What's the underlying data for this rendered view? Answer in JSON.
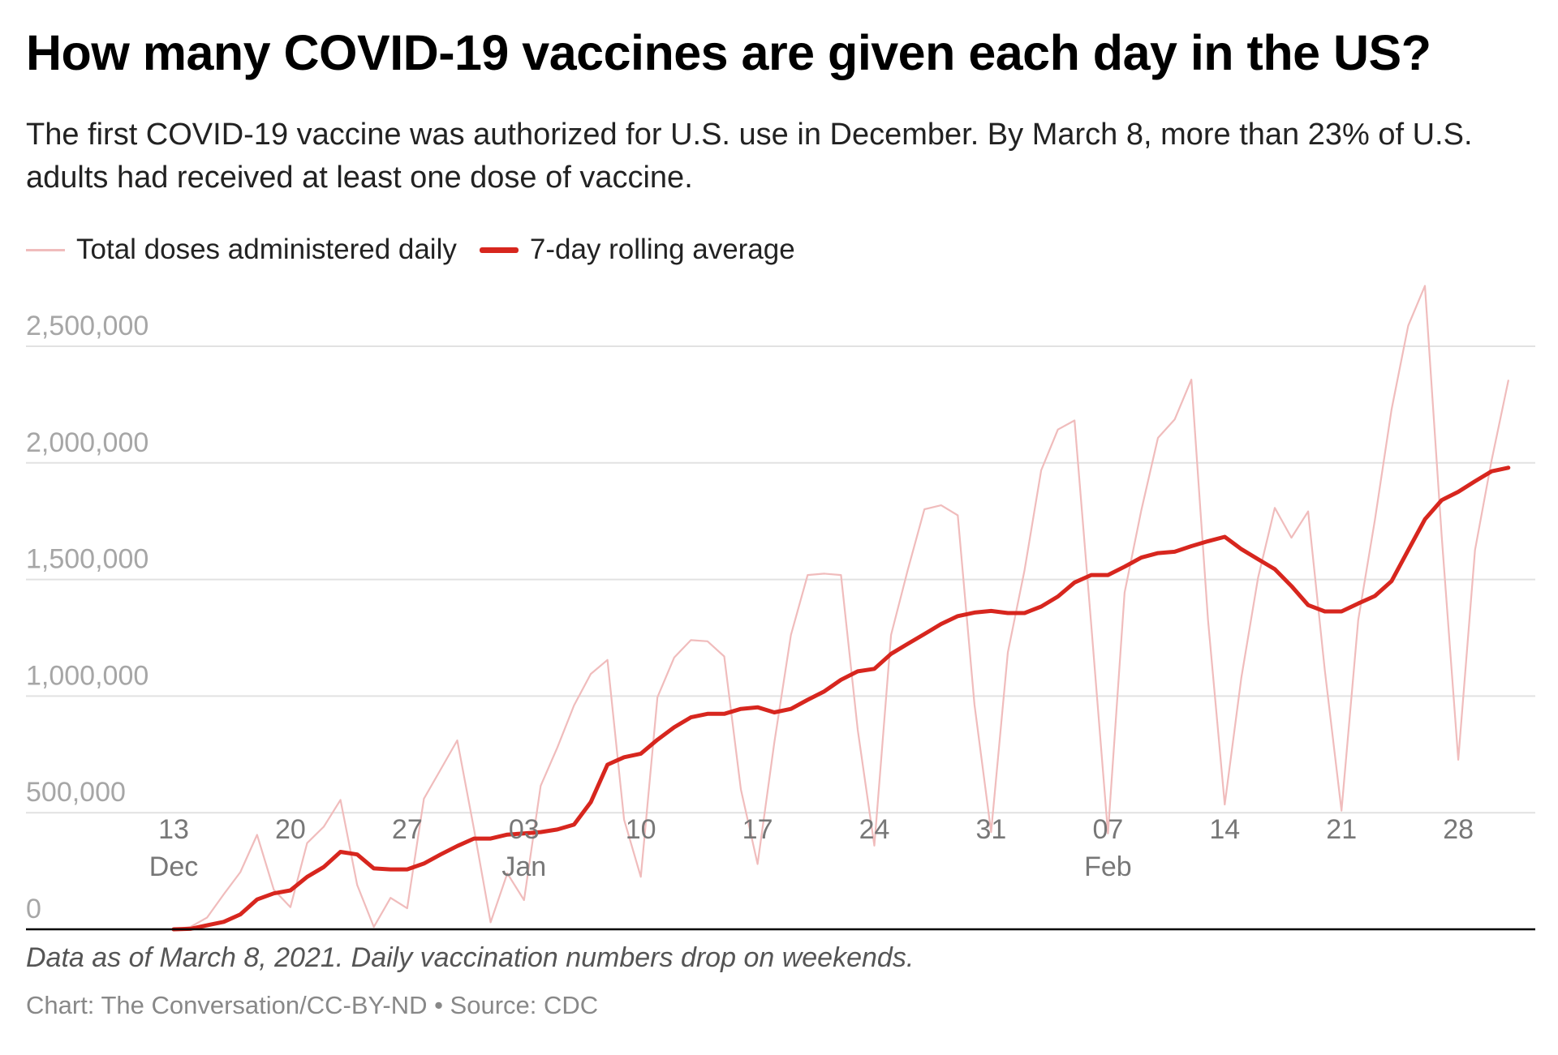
{
  "title": "How many COVID-19 vaccines are given each day in the US?",
  "subtitle": "The first COVID-19 vaccine was authorized for U.S. use in December. By March 8, more than 23% of U.S. adults had received at least one dose of vaccine.",
  "note": "Data as of March 8, 2021. Daily vaccination numbers drop on weekends.",
  "source": "Chart: The Conversation/CC-BY-ND • Source: CDC",
  "colors": {
    "daily": "#f0bcbc",
    "average": "#d7261e",
    "grid": "#e2e2e2",
    "axis": "#000000"
  },
  "chart_data": {
    "type": "line",
    "title": "How many COVID-19 vaccines are given each day in the US?",
    "xlabel": "",
    "ylabel": "",
    "ylim": [
      0,
      2500000
    ],
    "grid": true,
    "legend_placement": "top-left",
    "yticks": [
      {
        "value": 0,
        "label": "0"
      },
      {
        "value": 500000,
        "label": "500,000"
      },
      {
        "value": 1000000,
        "label": "1,000,000"
      },
      {
        "value": 1500000,
        "label": "1,500,000"
      },
      {
        "value": 2000000,
        "label": "2,000,000"
      },
      {
        "value": 2500000,
        "label": "2,500,000"
      }
    ],
    "xticks": [
      {
        "date": "2020-12-13",
        "label": "13",
        "month": "Dec"
      },
      {
        "date": "2020-12-20",
        "label": "20",
        "month": ""
      },
      {
        "date": "2020-12-27",
        "label": "27",
        "month": ""
      },
      {
        "date": "2021-01-03",
        "label": "03",
        "month": "Jan"
      },
      {
        "date": "2021-01-10",
        "label": "10",
        "month": ""
      },
      {
        "date": "2021-01-17",
        "label": "17",
        "month": ""
      },
      {
        "date": "2021-01-24",
        "label": "24",
        "month": ""
      },
      {
        "date": "2021-01-31",
        "label": "31",
        "month": ""
      },
      {
        "date": "2021-02-07",
        "label": "07",
        "month": "Feb"
      },
      {
        "date": "2021-02-14",
        "label": "14",
        "month": ""
      },
      {
        "date": "2021-02-21",
        "label": "21",
        "month": ""
      },
      {
        "date": "2021-02-28",
        "label": "28",
        "month": ""
      }
    ],
    "x": [
      "2020-12-13",
      "2020-12-14",
      "2020-12-15",
      "2020-12-16",
      "2020-12-17",
      "2020-12-18",
      "2020-12-19",
      "2020-12-20",
      "2020-12-21",
      "2020-12-22",
      "2020-12-23",
      "2020-12-24",
      "2020-12-25",
      "2020-12-26",
      "2020-12-27",
      "2020-12-28",
      "2020-12-29",
      "2020-12-30",
      "2020-12-31",
      "2021-01-01",
      "2021-01-02",
      "2021-01-03",
      "2021-01-04",
      "2021-01-05",
      "2021-01-06",
      "2021-01-07",
      "2021-01-08",
      "2021-01-09",
      "2021-01-10",
      "2021-01-11",
      "2021-01-12",
      "2021-01-13",
      "2021-01-14",
      "2021-01-15",
      "2021-01-16",
      "2021-01-17",
      "2021-01-18",
      "2021-01-19",
      "2021-01-20",
      "2021-01-21",
      "2021-01-22",
      "2021-01-23",
      "2021-01-24",
      "2021-01-25",
      "2021-01-26",
      "2021-01-27",
      "2021-01-28",
      "2021-01-29",
      "2021-01-30",
      "2021-01-31",
      "2021-02-01",
      "2021-02-02",
      "2021-02-03",
      "2021-02-04",
      "2021-02-05",
      "2021-02-06",
      "2021-02-07",
      "2021-02-08",
      "2021-02-09",
      "2021-02-10",
      "2021-02-11",
      "2021-02-12",
      "2021-02-13",
      "2021-02-14",
      "2021-02-15",
      "2021-02-16",
      "2021-02-17",
      "2021-02-18",
      "2021-02-19",
      "2021-02-20",
      "2021-02-21",
      "2021-02-22",
      "2021-02-23",
      "2021-02-24",
      "2021-02-25",
      "2021-02-26",
      "2021-02-27",
      "2021-02-28",
      "2021-03-01",
      "2021-03-02",
      "2021-03-03"
    ],
    "series": [
      {
        "name": "Total doses administered daily",
        "color": "#f0bcbc",
        "values": [
          0,
          10000,
          50000,
          150000,
          245000,
          405000,
          170000,
          95000,
          370000,
          440000,
          555000,
          190000,
          10000,
          135000,
          90000,
          560000,
          685000,
          810000,
          430000,
          30000,
          240000,
          125000,
          615000,
          780000,
          960000,
          1095000,
          1155000,
          470000,
          225000,
          995000,
          1165000,
          1240000,
          1235000,
          1170000,
          600000,
          280000,
          800000,
          1262000,
          1519000,
          1525000,
          1519000,
          856000,
          359000,
          1262000,
          1540000,
          1801000,
          1818000,
          1775000,
          963000,
          417000,
          1187000,
          1540000,
          1968000,
          2143000,
          2182000,
          1305000,
          411000,
          1444000,
          1797000,
          2107000,
          2186000,
          2357000,
          1326000,
          535000,
          1080000,
          1508000,
          1807000,
          1679000,
          1792000,
          1112000,
          509000,
          1326000,
          1754000,
          2229000,
          2588000,
          2759000,
          1690000,
          727000,
          1626000,
          2011000,
          2353000
        ]
      },
      {
        "name": "7-day rolling average",
        "color": "#d7261e",
        "values": [
          0,
          2000,
          17000,
          32000,
          64000,
          128000,
          154000,
          167000,
          225000,
          267000,
          332000,
          321000,
          261000,
          257000,
          257000,
          282000,
          321000,
          357000,
          389000,
          389000,
          406000,
          411000,
          417000,
          428000,
          449000,
          545000,
          706000,
          738000,
          753000,
          813000,
          866000,
          909000,
          924000,
          924000,
          945000,
          952000,
          930000,
          945000,
          984000,
          1020000,
          1070000,
          1106000,
          1117000,
          1181000,
          1224000,
          1266000,
          1309000,
          1343000,
          1358000,
          1365000,
          1356000,
          1356000,
          1384000,
          1427000,
          1487000,
          1519000,
          1519000,
          1555000,
          1594000,
          1613000,
          1619000,
          1643000,
          1664000,
          1683000,
          1630000,
          1587000,
          1544000,
          1472000,
          1390000,
          1363000,
          1363000,
          1397000,
          1429000,
          1493000,
          1626000,
          1758000,
          1840000,
          1876000,
          1921000,
          1964000,
          1979000
        ]
      }
    ]
  }
}
